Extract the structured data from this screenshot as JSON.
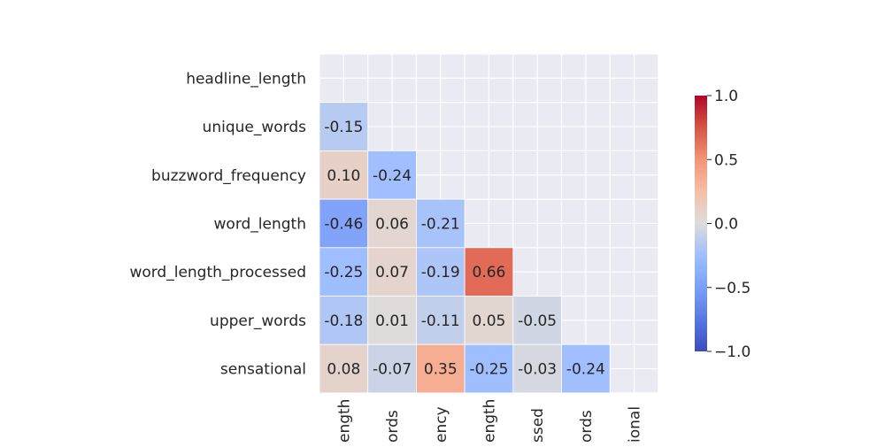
{
  "chart_data": {
    "type": "heatmap",
    "title": "",
    "variables": [
      "headline_length",
      "unique_words",
      "buzzword_frequency",
      "word_length",
      "word_length_processed",
      "upper_words",
      "sensational"
    ],
    "x_tick_labels_visible": [
      "ength",
      "ords",
      "ency",
      "ength",
      "ssed",
      "ords",
      "ional"
    ],
    "matrix": [
      [
        null,
        null,
        null,
        null,
        null,
        null,
        null
      ],
      [
        -0.15,
        null,
        null,
        null,
        null,
        null,
        null
      ],
      [
        0.1,
        -0.24,
        null,
        null,
        null,
        null,
        null
      ],
      [
        -0.46,
        0.06,
        -0.21,
        null,
        null,
        null,
        null
      ],
      [
        -0.25,
        0.07,
        -0.19,
        0.66,
        null,
        null,
        null
      ],
      [
        -0.18,
        0.01,
        -0.11,
        0.05,
        -0.05,
        null,
        null
      ],
      [
        0.08,
        -0.07,
        0.35,
        -0.25,
        -0.03,
        -0.24,
        null
      ]
    ],
    "mask": "upper-triangle-including-diagonal",
    "colormap": "coolwarm",
    "vmin": -1.0,
    "vmax": 1.0,
    "colorbar_ticks": [
      1.0,
      0.5,
      0.0,
      -0.5,
      -1.0
    ],
    "colorbar_tick_labels": [
      "1.0",
      "0.5",
      "0.0",
      "−0.5",
      "−1.0"
    ],
    "background_color": "#eaeaf2",
    "grid": true,
    "colorbar_placement": "right"
  }
}
